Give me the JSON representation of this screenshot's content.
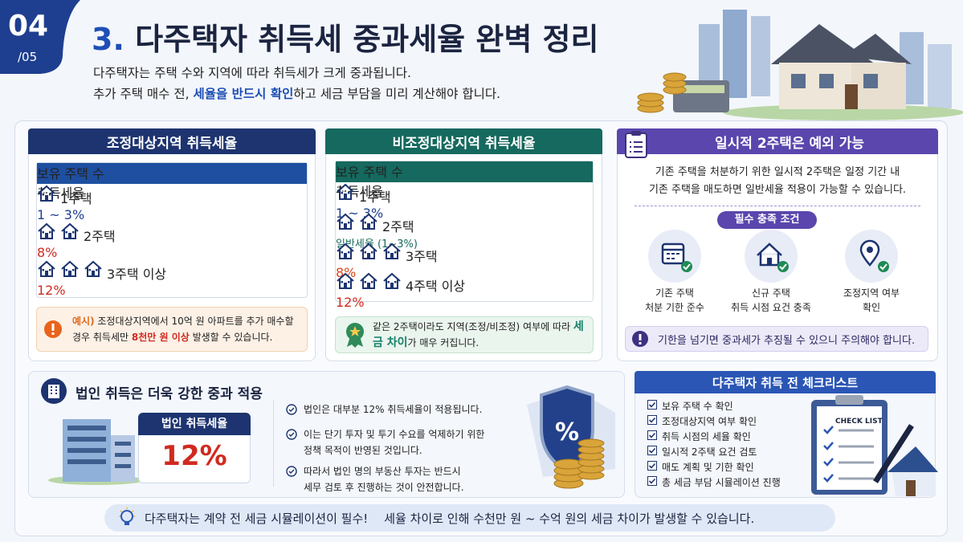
{
  "badge": {
    "number": "04",
    "total": "/05"
  },
  "header": {
    "title_number": "3.",
    "title_text": "다주택자 취득세 중과세율 완벽 정리",
    "subtitle_line1": "다주택자는 주택 수와 지역에 따라 취득세가 크게 중과됩니다.",
    "subtitle_line2": [
      "추가 주택 매수 전, ",
      "세율을 반드시 확인",
      "하고 세금 부담을 미리 계산해야 합니다."
    ]
  },
  "adjusted": {
    "title": "조정대상지역 취득세율",
    "table": {
      "headers": [
        "보유 주택 수",
        "취득세율"
      ],
      "rows": [
        [
          "1주택",
          "1 ~ 3%"
        ],
        [
          "2주택",
          "8%"
        ],
        [
          "3주택 이상",
          "12%"
        ]
      ]
    },
    "note": [
      "예시)",
      " 조정대상지역에서 10억 원 아파트를 추가 매수할 경우 취득세만 ",
      "8천만 원 이상",
      " 발생할 수 있습니다."
    ]
  },
  "non_adjusted": {
    "title": "비조정대상지역 취득세율",
    "table": {
      "headers": [
        "보유 주택 수",
        "취득세율"
      ],
      "rows": [
        [
          "1주택",
          "1 ~ 3%"
        ],
        [
          "2주택",
          "일반세율 (1~3%)"
        ],
        [
          "3주택",
          "8%"
        ],
        [
          "4주택 이상",
          "12%"
        ]
      ]
    },
    "note": [
      "같은 2주택이라도 지역(조정/비조정) 여부에 따라 ",
      "세금 차이",
      "가 매우 커집니다."
    ]
  },
  "temporary": {
    "title": "일시적 2주택은 예외 가능",
    "description": [
      "기존 주택을 처분하기 위한 일시적 2주택은 일정 기간 내",
      "기존 주택을 매도하면 일반세율 적용이 가능할 수 있습니다."
    ],
    "conditions_title": "필수 충족 조건",
    "conditions": [
      [
        "기존 주택",
        "처분 기한 준수"
      ],
      [
        "신규 주택",
        "취득 시점 요건 충족"
      ],
      [
        "조정지역 여부",
        "확인"
      ]
    ],
    "warning": "기한을 넘기면 중과세가 추징될 수 있으니 주의해야 합니다."
  },
  "corporate": {
    "title": "법인 취득은 더욱 강한 중과 적용",
    "rate_label": "법인 취득세율",
    "rate": "12%",
    "bullets": [
      [
        "법인은 대부분 12% 취득세율이 적용됩니다."
      ],
      [
        "이는 단기 투자 및 투기 수요를 억제하기 위한",
        "정책 목적이 반영된 것입니다."
      ],
      [
        "따라서 법인 명의 부동산 투자는 반드시",
        "세무 검토 후 진행하는 것이 안전합니다."
      ]
    ]
  },
  "checklist": {
    "title": "다주택자 취득 전 체크리스트",
    "items": [
      "보유 주택 수 확인",
      "조정대상지역 여부 확인",
      "취득 시점의 세율 확인",
      "일시적 2주택 요건 검토",
      "매도 계획 및 기한 확인",
      "총 세금 부담 시뮬레이션 진행"
    ],
    "image_label": "CHECK LIST"
  },
  "footer": [
    "다주택자는 계약 전 세금 시뮬레이션이 필수!",
    "세율 차이로 인해 수천만 원 ~ 수억 원의 세금 차이가 발생할 수 있습니다."
  ]
}
